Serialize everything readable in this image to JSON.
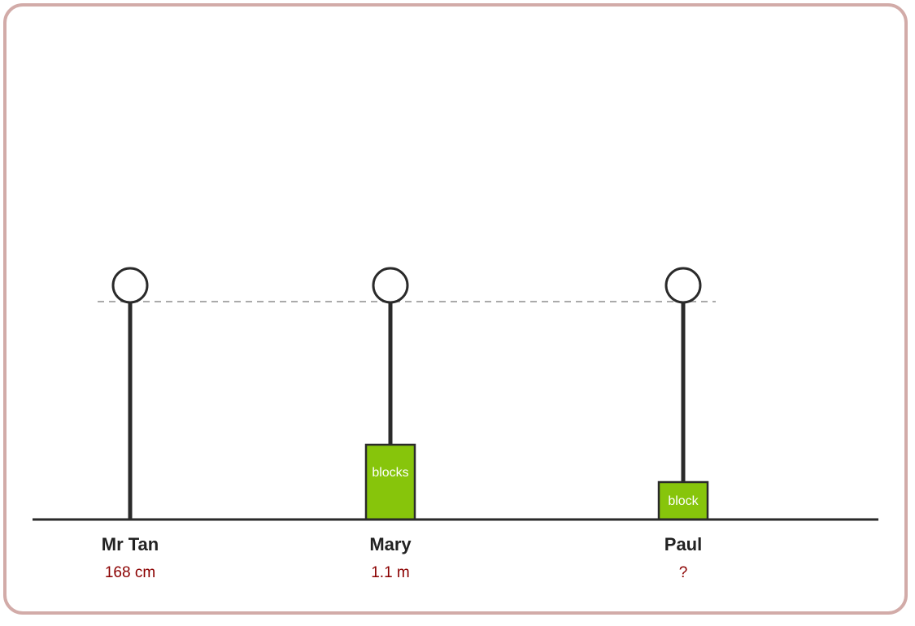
{
  "people": [
    {
      "name": "Mr Tan",
      "height": "168 cm"
    },
    {
      "name": "Mary",
      "height": "1.1 m",
      "block": "blocks"
    },
    {
      "name": "Paul",
      "height": "?",
      "block": "block"
    }
  ]
}
